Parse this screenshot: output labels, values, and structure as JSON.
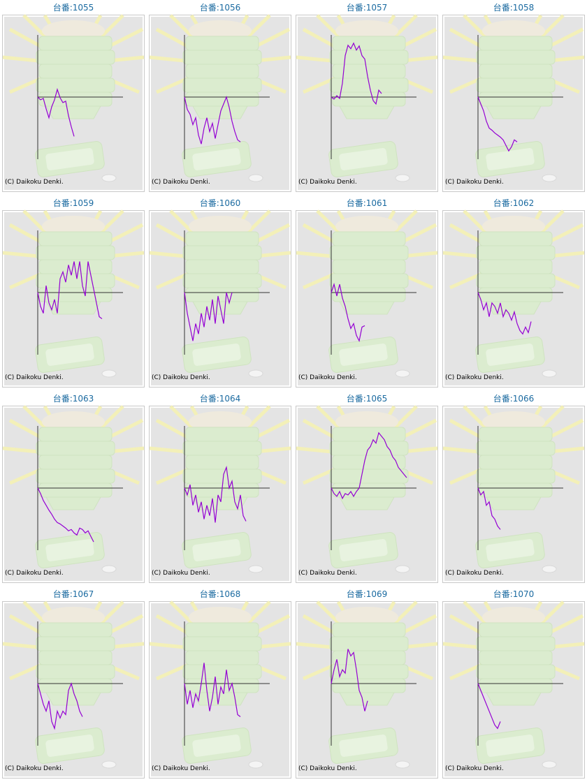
{
  "chart_data": [
    {
      "type": "line",
      "title": "台番:1055",
      "credit": "(C) Daikoku Denki.",
      "color": "#9400d3",
      "ylim": [
        -90,
        90
      ],
      "values": [
        0,
        -4,
        -2,
        -17,
        -30,
        -14,
        -4,
        11,
        -1,
        -8,
        -6,
        -27,
        -43,
        -57
      ]
    },
    {
      "type": "line",
      "title": "台番:1056",
      "credit": "(C) Daikoku Denki.",
      "color": "#9400d3",
      "ylim": [
        -90,
        90
      ],
      "values": [
        0,
        -18,
        -25,
        -40,
        -30,
        -55,
        -68,
        -45,
        -30,
        -50,
        -38,
        -60,
        -40,
        -20,
        -10,
        0,
        -15,
        -35,
        -50,
        -62,
        -65
      ]
    },
    {
      "type": "line",
      "title": "台番:1057",
      "credit": "(C) Daikoku Denki.",
      "color": "#9400d3",
      "ylim": [
        -90,
        90
      ],
      "values": [
        0,
        -3,
        2,
        -2,
        20,
        60,
        75,
        70,
        78,
        68,
        74,
        60,
        55,
        30,
        10,
        -5,
        -10,
        10,
        5
      ]
    },
    {
      "type": "line",
      "title": "台番:1058",
      "credit": "(C) Daikoku Denki.",
      "color": "#9400d3",
      "ylim": [
        -90,
        90
      ],
      "values": [
        0,
        -10,
        -20,
        -35,
        -45,
        -48,
        -52,
        -55,
        -58,
        -62,
        -70,
        -78,
        -72,
        -62,
        -65
      ]
    },
    {
      "type": "line",
      "title": "台番:1059",
      "credit": "(C) Daikoku Denki.",
      "color": "#9400d3",
      "ylim": [
        -90,
        90
      ],
      "values": [
        0,
        -20,
        -30,
        10,
        -15,
        -25,
        -10,
        -30,
        20,
        30,
        15,
        40,
        25,
        45,
        20,
        45,
        10,
        -5,
        45,
        25,
        5,
        -15,
        -35,
        -38
      ]
    },
    {
      "type": "line",
      "title": "台番:1060",
      "credit": "(C) Daikoku Denki.",
      "color": "#9400d3",
      "ylim": [
        -90,
        90
      ],
      "values": [
        0,
        -30,
        -50,
        -70,
        -45,
        -60,
        -30,
        -50,
        -20,
        -40,
        -10,
        -45,
        -5,
        -25,
        -45,
        0,
        -15,
        0
      ]
    },
    {
      "type": "line",
      "title": "台番:1061",
      "credit": "(C) Daikoku Denki.",
      "color": "#9400d3",
      "ylim": [
        -90,
        90
      ],
      "values": [
        0,
        12,
        -5,
        12,
        -8,
        -20,
        -38,
        -52,
        -45,
        -62,
        -70,
        -50,
        -48
      ]
    },
    {
      "type": "line",
      "title": "台番:1062",
      "credit": "(C) Daikoku Denki.",
      "color": "#9400d3",
      "ylim": [
        -90,
        90
      ],
      "values": [
        0,
        -10,
        -25,
        -15,
        -35,
        -15,
        -20,
        -30,
        -15,
        -35,
        -25,
        -30,
        -40,
        -28,
        -45,
        -55,
        -60,
        -50,
        -58,
        -42
      ]
    },
    {
      "type": "line",
      "title": "台番:1063",
      "credit": "(C) Daikoku Denki.",
      "color": "#9400d3",
      "ylim": [
        -90,
        90
      ],
      "values": [
        0,
        -8,
        -18,
        -25,
        -32,
        -38,
        -45,
        -50,
        -52,
        -55,
        -58,
        -62,
        -60,
        -65,
        -68,
        -58,
        -60,
        -65,
        -62,
        -70,
        -78
      ]
    },
    {
      "type": "line",
      "title": "台番:1064",
      "credit": "(C) Daikoku Denki.",
      "color": "#9400d3",
      "ylim": [
        -90,
        90
      ],
      "values": [
        0,
        -10,
        5,
        -25,
        -10,
        -35,
        -20,
        -45,
        -25,
        -40,
        -15,
        -50,
        -10,
        -20,
        20,
        30,
        0,
        10,
        -20,
        -30,
        -10,
        -40,
        -48
      ]
    },
    {
      "type": "line",
      "title": "台番:1065",
      "credit": "(C) Daikoku Denki.",
      "color": "#9400d3",
      "ylim": [
        -90,
        90
      ],
      "values": [
        0,
        -8,
        -12,
        -5,
        -15,
        -8,
        -10,
        -5,
        -12,
        -5,
        0,
        20,
        40,
        55,
        60,
        70,
        65,
        80,
        75,
        70,
        60,
        55,
        45,
        40,
        30,
        25,
        20,
        15
      ]
    },
    {
      "type": "line",
      "title": "台番:1066",
      "credit": "(C) Daikoku Denki.",
      "color": "#9400d3",
      "ylim": [
        -90,
        90
      ],
      "values": [
        0,
        -10,
        -5,
        -25,
        -20,
        -40,
        -45,
        -55,
        -60
      ]
    },
    {
      "type": "line",
      "title": "台番:1067",
      "credit": "(C) Daikoku Denki.",
      "color": "#9400d3",
      "ylim": [
        -90,
        90
      ],
      "values": [
        0,
        -15,
        -30,
        -40,
        -25,
        -55,
        -65,
        -40,
        -50,
        -40,
        -45,
        -10,
        0,
        -15,
        -25,
        -40,
        -48
      ]
    },
    {
      "type": "line",
      "title": "台番:1068",
      "credit": "(C) Daikoku Denki.",
      "color": "#9400d3",
      "ylim": [
        -90,
        90
      ],
      "values": [
        0,
        -30,
        -10,
        -35,
        -15,
        -25,
        0,
        30,
        -10,
        -40,
        -20,
        10,
        -30,
        -5,
        -15,
        20,
        -10,
        0,
        -20,
        -45,
        -48
      ]
    },
    {
      "type": "line",
      "title": "台番:1069",
      "credit": "(C) Daikoku Denki.",
      "color": "#9400d3",
      "ylim": [
        -90,
        90
      ],
      "values": [
        0,
        20,
        35,
        10,
        20,
        15,
        50,
        40,
        45,
        20,
        -10,
        -20,
        -40,
        -25
      ]
    },
    {
      "type": "line",
      "title": "台番:1070",
      "credit": "(C) Daikoku Denki.",
      "color": "#9400d3",
      "ylim": [
        -90,
        90
      ],
      "values": [
        0,
        -10,
        -20,
        -30,
        -40,
        -50,
        -60,
        -65,
        -55
      ]
    }
  ]
}
